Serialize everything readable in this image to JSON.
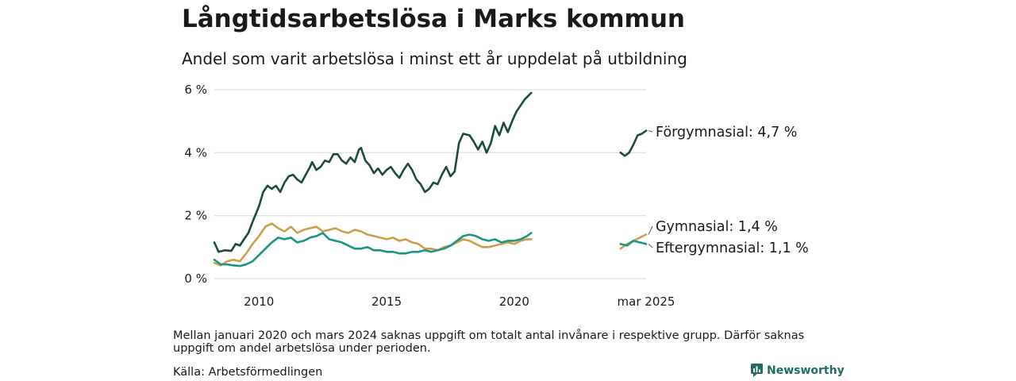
{
  "header": {
    "title": "Långtidsarbetslösa i Marks kommun",
    "subtitle": "Andel som varit arbetslösa i minst ett år uppdelat på utbildning"
  },
  "footer": {
    "note": "Mellan januari 2020 och mars 2024 saknas uppgift om totalt antal invånare i respektive grupp. Därför saknas uppgift om andel arbetslösa under perioden.",
    "source": "Källa: Arbetsförmedlingen",
    "brand": "Newsworthy"
  },
  "colors": {
    "forgymnasial": "#1c4a3f",
    "gymnasial": "#cf9e4b",
    "eftergymnasial": "#1b9680",
    "grid": "#dddddd",
    "brand": "#1d6e5e"
  },
  "chart_data": {
    "type": "line",
    "title": "Långtidsarbetslösa i Marks kommun",
    "subtitle": "Andel som varit arbetslösa i minst ett år uppdelat på utbildning",
    "xlabel": "",
    "ylabel": "",
    "y_unit": "%",
    "ylim": [
      0,
      6
    ],
    "y_ticks": [
      {
        "value": 0,
        "label": "0 %"
      },
      {
        "value": 2,
        "label": "2 %"
      },
      {
        "value": 4,
        "label": "4 %"
      },
      {
        "value": 6,
        "label": "6 %"
      }
    ],
    "x_range": [
      "2008-04",
      "2025-03"
    ],
    "x_ticks": [
      {
        "date": "2010-01",
        "label": "2010"
      },
      {
        "date": "2015-01",
        "label": "2015"
      },
      {
        "date": "2020-01",
        "label": "2020"
      },
      {
        "date": "2025-03",
        "label": "mar 2025"
      }
    ],
    "grid": true,
    "legend": "inline labels at line ends",
    "series": [
      {
        "name": "Förgymnasial",
        "end_label": "Förgymnasial: 4,7 %",
        "color_key": "forgymnasial",
        "segments": [
          [
            [
              "2008-04",
              1.15
            ],
            [
              "2008-06",
              0.85
            ],
            [
              "2008-09",
              0.9
            ],
            [
              "2008-12",
              0.88
            ],
            [
              "2009-02",
              1.1
            ],
            [
              "2009-04",
              1.05
            ],
            [
              "2009-06",
              1.25
            ],
            [
              "2009-08",
              1.45
            ],
            [
              "2009-10",
              1.8
            ],
            [
              "2010-01",
              2.3
            ],
            [
              "2010-03",
              2.75
            ],
            [
              "2010-05",
              2.95
            ],
            [
              "2010-07",
              2.85
            ],
            [
              "2010-09",
              2.95
            ],
            [
              "2010-11",
              2.75
            ],
            [
              "2011-01",
              3.05
            ],
            [
              "2011-03",
              3.25
            ],
            [
              "2011-05",
              3.3
            ],
            [
              "2011-07",
              3.15
            ],
            [
              "2011-09",
              3.05
            ],
            [
              "2011-11",
              3.3
            ],
            [
              "2012-01",
              3.55
            ],
            [
              "2012-02",
              3.7
            ],
            [
              "2012-04",
              3.45
            ],
            [
              "2012-06",
              3.55
            ],
            [
              "2012-08",
              3.75
            ],
            [
              "2012-10",
              3.7
            ],
            [
              "2012-12",
              3.95
            ],
            [
              "2013-02",
              3.95
            ],
            [
              "2013-04",
              3.75
            ],
            [
              "2013-06",
              3.65
            ],
            [
              "2013-08",
              3.85
            ],
            [
              "2013-10",
              3.7
            ],
            [
              "2013-12",
              4.1
            ],
            [
              "2014-01",
              4.15
            ],
            [
              "2014-03",
              3.75
            ],
            [
              "2014-05",
              3.6
            ],
            [
              "2014-07",
              3.35
            ],
            [
              "2014-09",
              3.5
            ],
            [
              "2014-11",
              3.3
            ],
            [
              "2015-01",
              3.45
            ],
            [
              "2015-03",
              3.55
            ],
            [
              "2015-05",
              3.35
            ],
            [
              "2015-07",
              3.2
            ],
            [
              "2015-09",
              3.45
            ],
            [
              "2015-11",
              3.65
            ],
            [
              "2016-01",
              3.45
            ],
            [
              "2016-03",
              3.15
            ],
            [
              "2016-05",
              3.0
            ],
            [
              "2016-07",
              2.75
            ],
            [
              "2016-09",
              2.85
            ],
            [
              "2016-11",
              3.05
            ],
            [
              "2017-01",
              3.0
            ],
            [
              "2017-03",
              3.3
            ],
            [
              "2017-05",
              3.55
            ],
            [
              "2017-07",
              3.25
            ],
            [
              "2017-09",
              3.4
            ],
            [
              "2017-11",
              4.3
            ],
            [
              "2018-01",
              4.6
            ],
            [
              "2018-04",
              4.55
            ],
            [
              "2018-06",
              4.35
            ],
            [
              "2018-08",
              4.1
            ],
            [
              "2018-10",
              4.35
            ],
            [
              "2018-12",
              4.0
            ],
            [
              "2019-02",
              4.3
            ],
            [
              "2019-04",
              4.85
            ],
            [
              "2019-06",
              4.55
            ],
            [
              "2019-08",
              4.95
            ],
            [
              "2019-10",
              4.65
            ],
            [
              "2019-12",
              5.0
            ],
            [
              "2020-02",
              5.3
            ],
            [
              "2020-04",
              5.5
            ],
            [
              "2020-06",
              5.7
            ],
            [
              "2020-09",
              5.9
            ]
          ],
          [
            [
              "2024-03",
              4.0
            ],
            [
              "2024-05",
              3.9
            ],
            [
              "2024-07",
              4.0
            ],
            [
              "2024-09",
              4.25
            ],
            [
              "2024-11",
              4.55
            ],
            [
              "2025-01",
              4.6
            ],
            [
              "2025-03",
              4.7
            ]
          ]
        ]
      },
      {
        "name": "Gymnasial",
        "end_label": "Gymnasial: 1,4 %",
        "color_key": "gymnasial",
        "segments": [
          [
            [
              "2008-04",
              0.5
            ],
            [
              "2008-07",
              0.42
            ],
            [
              "2008-10",
              0.55
            ],
            [
              "2009-01",
              0.6
            ],
            [
              "2009-04",
              0.55
            ],
            [
              "2009-07",
              0.8
            ],
            [
              "2009-10",
              1.1
            ],
            [
              "2010-01",
              1.35
            ],
            [
              "2010-04",
              1.65
            ],
            [
              "2010-07",
              1.75
            ],
            [
              "2010-10",
              1.6
            ],
            [
              "2011-01",
              1.5
            ],
            [
              "2011-04",
              1.65
            ],
            [
              "2011-07",
              1.45
            ],
            [
              "2011-10",
              1.55
            ],
            [
              "2012-01",
              1.6
            ],
            [
              "2012-04",
              1.65
            ],
            [
              "2012-07",
              1.5
            ],
            [
              "2012-10",
              1.55
            ],
            [
              "2013-01",
              1.6
            ],
            [
              "2013-04",
              1.5
            ],
            [
              "2013-07",
              1.45
            ],
            [
              "2013-10",
              1.55
            ],
            [
              "2014-01",
              1.5
            ],
            [
              "2014-04",
              1.4
            ],
            [
              "2014-07",
              1.35
            ],
            [
              "2014-10",
              1.3
            ],
            [
              "2015-01",
              1.25
            ],
            [
              "2015-04",
              1.3
            ],
            [
              "2015-07",
              1.2
            ],
            [
              "2015-10",
              1.25
            ],
            [
              "2016-01",
              1.15
            ],
            [
              "2016-04",
              1.1
            ],
            [
              "2016-07",
              0.95
            ],
            [
              "2016-10",
              0.95
            ],
            [
              "2017-01",
              0.9
            ],
            [
              "2017-04",
              1.0
            ],
            [
              "2017-07",
              1.05
            ],
            [
              "2017-10",
              1.15
            ],
            [
              "2018-01",
              1.25
            ],
            [
              "2018-04",
              1.2
            ],
            [
              "2018-07",
              1.1
            ],
            [
              "2018-10",
              1.0
            ],
            [
              "2019-01",
              1.0
            ],
            [
              "2019-04",
              1.05
            ],
            [
              "2019-07",
              1.1
            ],
            [
              "2019-10",
              1.15
            ],
            [
              "2020-01",
              1.1
            ],
            [
              "2020-04",
              1.2
            ],
            [
              "2020-07",
              1.25
            ],
            [
              "2020-09",
              1.25
            ]
          ],
          [
            [
              "2024-03",
              0.95
            ],
            [
              "2024-06",
              1.1
            ],
            [
              "2024-09",
              1.2
            ],
            [
              "2024-12",
              1.3
            ],
            [
              "2025-03",
              1.4
            ]
          ]
        ]
      },
      {
        "name": "Eftergymnasial",
        "end_label": "Eftergymnasial: 1,1 %",
        "color_key": "eftergymnasial",
        "segments": [
          [
            [
              "2008-04",
              0.6
            ],
            [
              "2008-07",
              0.45
            ],
            [
              "2008-10",
              0.45
            ],
            [
              "2009-01",
              0.42
            ],
            [
              "2009-04",
              0.4
            ],
            [
              "2009-07",
              0.45
            ],
            [
              "2009-10",
              0.55
            ],
            [
              "2010-01",
              0.75
            ],
            [
              "2010-04",
              0.95
            ],
            [
              "2010-07",
              1.15
            ],
            [
              "2010-10",
              1.3
            ],
            [
              "2011-01",
              1.25
            ],
            [
              "2011-04",
              1.3
            ],
            [
              "2011-07",
              1.15
            ],
            [
              "2011-10",
              1.2
            ],
            [
              "2012-01",
              1.3
            ],
            [
              "2012-04",
              1.35
            ],
            [
              "2012-07",
              1.45
            ],
            [
              "2012-10",
              1.25
            ],
            [
              "2013-01",
              1.2
            ],
            [
              "2013-04",
              1.15
            ],
            [
              "2013-07",
              1.05
            ],
            [
              "2013-10",
              0.95
            ],
            [
              "2014-01",
              0.95
            ],
            [
              "2014-04",
              1.0
            ],
            [
              "2014-07",
              0.9
            ],
            [
              "2014-10",
              0.9
            ],
            [
              "2015-01",
              0.85
            ],
            [
              "2015-04",
              0.85
            ],
            [
              "2015-07",
              0.8
            ],
            [
              "2015-10",
              0.8
            ],
            [
              "2016-01",
              0.85
            ],
            [
              "2016-04",
              0.85
            ],
            [
              "2016-07",
              0.9
            ],
            [
              "2016-10",
              0.85
            ],
            [
              "2017-01",
              0.9
            ],
            [
              "2017-04",
              0.95
            ],
            [
              "2017-07",
              1.05
            ],
            [
              "2017-10",
              1.2
            ],
            [
              "2018-01",
              1.35
            ],
            [
              "2018-04",
              1.4
            ],
            [
              "2018-07",
              1.35
            ],
            [
              "2018-10",
              1.25
            ],
            [
              "2019-01",
              1.2
            ],
            [
              "2019-04",
              1.25
            ],
            [
              "2019-07",
              1.15
            ],
            [
              "2019-10",
              1.2
            ],
            [
              "2020-01",
              1.2
            ],
            [
              "2020-04",
              1.25
            ],
            [
              "2020-07",
              1.35
            ],
            [
              "2020-09",
              1.45
            ]
          ],
          [
            [
              "2024-03",
              1.1
            ],
            [
              "2024-06",
              1.05
            ],
            [
              "2024-09",
              1.2
            ],
            [
              "2024-12",
              1.15
            ],
            [
              "2025-03",
              1.1
            ]
          ]
        ]
      }
    ]
  }
}
